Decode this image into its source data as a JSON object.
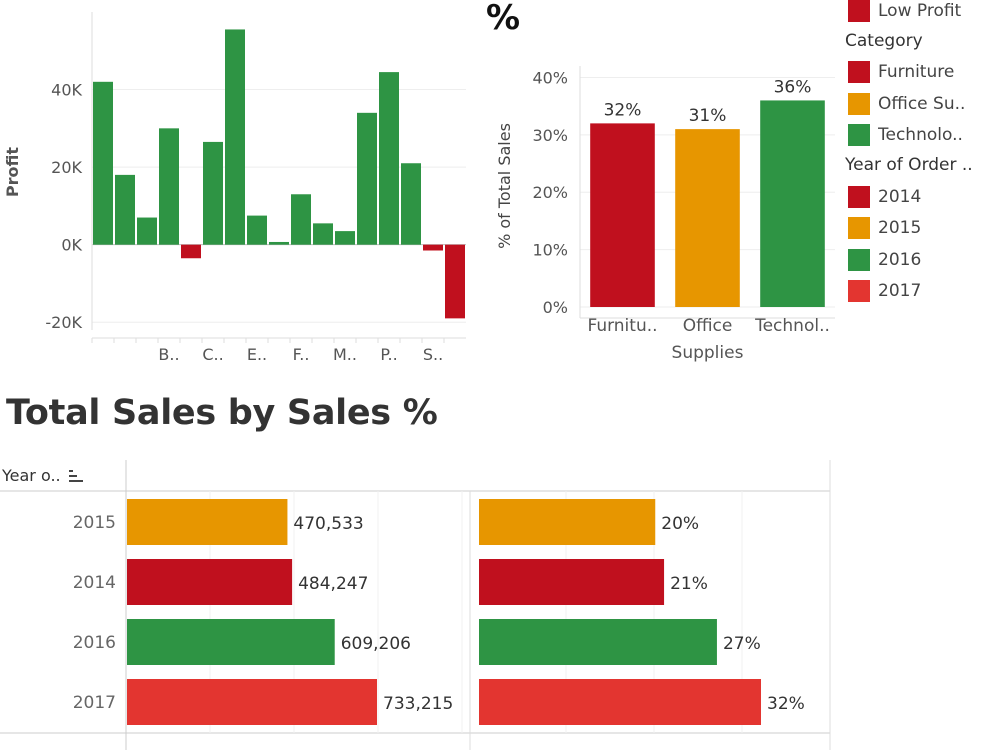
{
  "top_partial_title": "%",
  "section_title": "Total Sales by Sales %",
  "year_header": "Year o..",
  "sort_icon": "sort-descending-icon",
  "colors": {
    "furniture": "#c0101e",
    "office": "#e79600",
    "technology": "#2e9444",
    "y2014": "#c0101e",
    "y2015": "#e79600",
    "y2016": "#2e9444",
    "y2017": "#e33530",
    "positive": "#2e9444",
    "negative": "#c0101e"
  },
  "legend": {
    "profit_items": [
      {
        "label": "Low Profit",
        "color": "#c0101e"
      }
    ],
    "category_title": "Category",
    "category_items": [
      {
        "label": "Furniture",
        "color": "#c0101e"
      },
      {
        "label": "Office Su..",
        "color": "#e79600"
      },
      {
        "label": "Technolo..",
        "color": "#2e9444"
      }
    ],
    "year_title": "Year of Order ..",
    "year_items": [
      {
        "label": "2014",
        "color": "#c0101e"
      },
      {
        "label": "2015",
        "color": "#e79600"
      },
      {
        "label": "2016",
        "color": "#2e9444"
      },
      {
        "label": "2017",
        "color": "#e33530"
      }
    ]
  },
  "chart_data": [
    {
      "type": "bar",
      "ylabel": "Profit",
      "ylim": [
        -22000,
        60000
      ],
      "yticks": [
        -20000,
        0,
        20000,
        40000
      ],
      "ytick_labels": [
        "-20K",
        "0K",
        "20K",
        "40K"
      ],
      "values": [
        42000,
        18000,
        7000,
        30000,
        -3500,
        26500,
        55500,
        7500,
        700,
        13000,
        5500,
        3500,
        34000,
        44500,
        21000,
        -1500,
        -19000
      ],
      "category_labels": [
        "",
        "",
        "",
        "B..",
        "",
        "C..",
        "",
        "E..",
        "",
        "F..",
        "",
        "M..",
        "",
        "P..",
        "",
        "S..",
        ""
      ]
    },
    {
      "type": "bar",
      "ylabel": "% of Total Sales",
      "ylim": [
        0,
        0.42
      ],
      "yticks": [
        0,
        0.1,
        0.2,
        0.3,
        0.4
      ],
      "ytick_labels": [
        "0%",
        "10%",
        "20%",
        "30%",
        "40%"
      ],
      "categories": [
        "Furnitu..",
        "Office Supplies",
        "Technol.."
      ],
      "values": [
        0.32,
        0.31,
        0.36
      ],
      "data_labels": [
        "32%",
        "31%",
        "36%"
      ],
      "colors": [
        "#c0101e",
        "#e79600",
        "#2e9444"
      ]
    },
    {
      "type": "bar",
      "orientation": "horizontal",
      "categories": [
        "2015",
        "2014",
        "2016",
        "2017"
      ],
      "values": [
        470533,
        484247,
        609206,
        733215
      ],
      "data_labels": [
        "470,533",
        "484,247",
        "609,206",
        "733,215"
      ],
      "colors": [
        "#e79600",
        "#c0101e",
        "#2e9444",
        "#e33530"
      ],
      "xlim": [
        0,
        900000
      ]
    },
    {
      "type": "bar",
      "orientation": "horizontal",
      "categories": [
        "2015",
        "2014",
        "2016",
        "2017"
      ],
      "values": [
        0.2,
        0.21,
        0.27,
        0.32
      ],
      "data_labels": [
        "20%",
        "21%",
        "27%",
        "32%"
      ],
      "colors": [
        "#e79600",
        "#c0101e",
        "#2e9444",
        "#e33530"
      ],
      "xlim": [
        0,
        0.45
      ]
    }
  ]
}
